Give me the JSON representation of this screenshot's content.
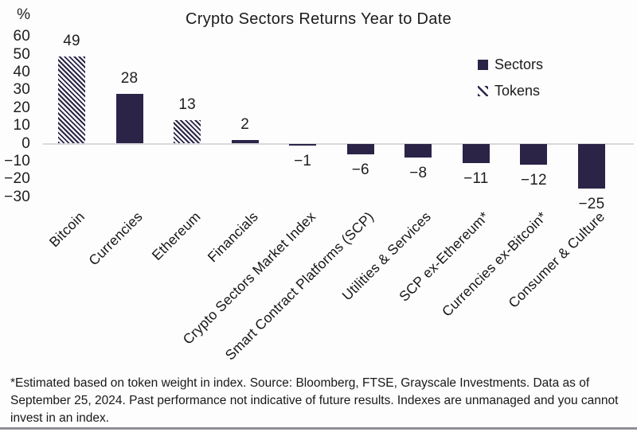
{
  "title": "Crypto Sectors Returns Year to Date",
  "y_axis_unit": "%",
  "legend": {
    "items": [
      {
        "label": "Sectors",
        "style": "solid"
      },
      {
        "label": "Tokens",
        "style": "hatched"
      }
    ]
  },
  "chart_data": {
    "type": "bar",
    "title": "Crypto Sectors Returns Year to Date",
    "xlabel": "",
    "ylabel": "%",
    "ylim": [
      -30,
      60
    ],
    "yticks": [
      60,
      50,
      40,
      30,
      20,
      10,
      0,
      -10,
      -20,
      -30
    ],
    "grid": false,
    "legend_position": "upper right",
    "categories": [
      "Bitcoin",
      "Currencies",
      "Ethereum",
      "Financials",
      "Crypto Sectors Market Index",
      "Smart Contract Platforms (SCP)",
      "Utilities & Services",
      "SCP ex-Ethereum*",
      "Currencies ex-Bitcoin*",
      "Consumer & Culture"
    ],
    "values": [
      49,
      28,
      13,
      2,
      -1,
      -6,
      -8,
      -11,
      -12,
      -25
    ],
    "bar_styles": [
      "hatched",
      "solid",
      "hatched",
      "solid",
      "solid",
      "solid",
      "solid",
      "solid",
      "solid",
      "solid"
    ],
    "style_legend": {
      "solid": "Sectors",
      "hatched": "Tokens"
    },
    "colors": {
      "bar": "#2b2447",
      "hatch_background": "#ffffff",
      "axis_line": "#d9d9dd",
      "text": "#1c1c1c"
    }
  },
  "footnote": "*Estimated based on token weight in index. Source: Bloomberg, FTSE, Grayscale Investments. Data as of September 25, 2024. Past performance not indicative of future results. Indexes are unmanaged and you cannot invest in an index."
}
